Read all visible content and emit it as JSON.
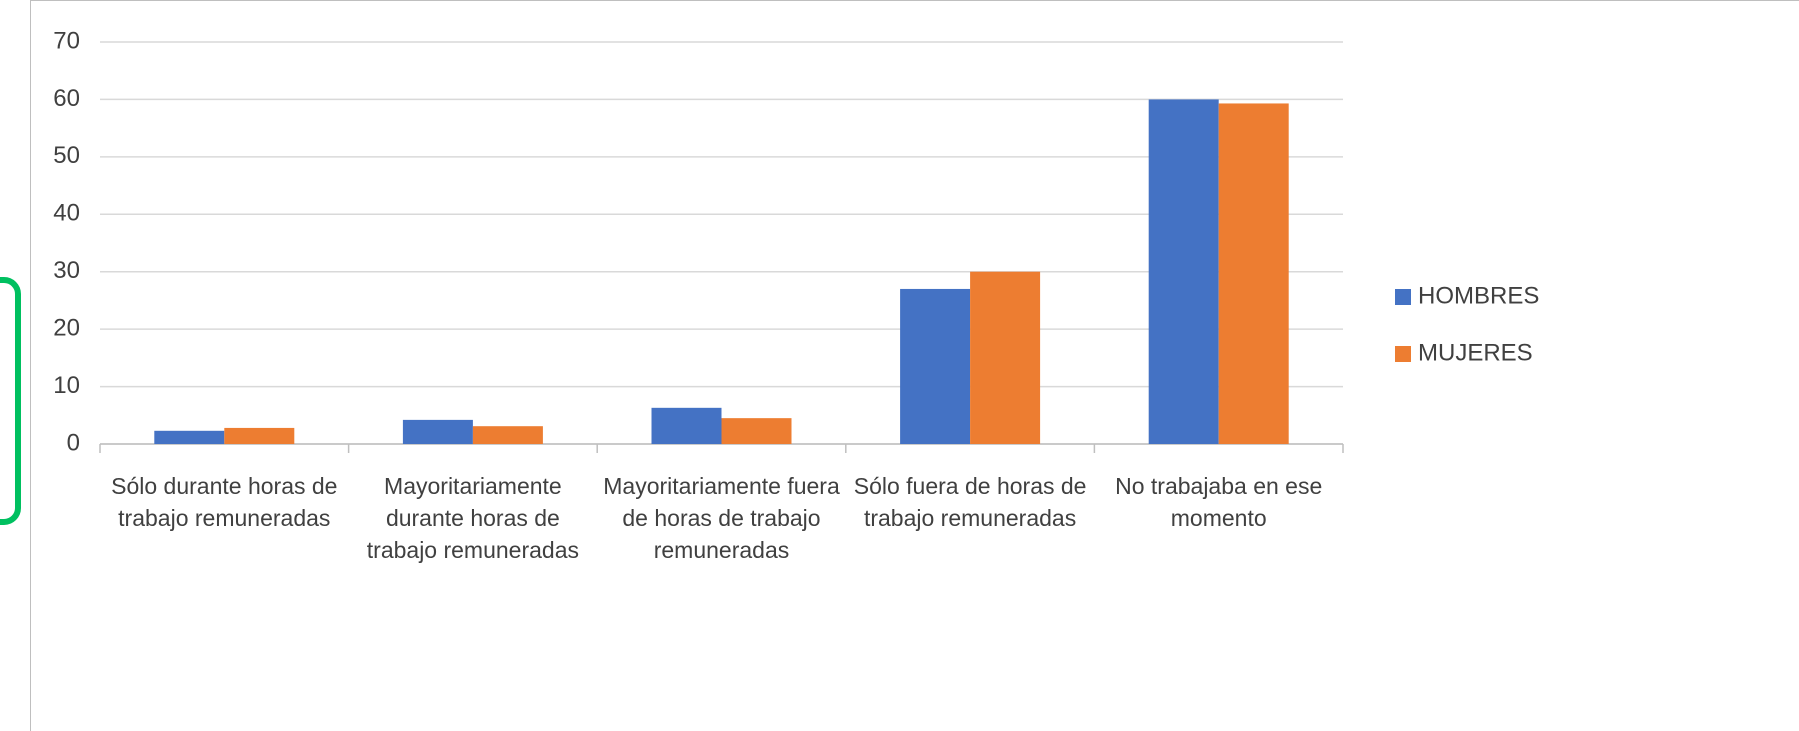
{
  "chart_data": {
    "type": "bar",
    "categories": [
      "Sólo durante horas de trabajo remuneradas",
      "Mayoritariamente durante horas de trabajo remuneradas",
      "Mayoritariamente fuera de horas de trabajo remuneradas",
      "Sólo fuera de horas de trabajo remuneradas",
      "No trabajaba en ese momento"
    ],
    "series": [
      {
        "name": "HOMBRES",
        "color": "#4472c4",
        "values": [
          2.3,
          4.2,
          6.3,
          27,
          60
        ]
      },
      {
        "name": "MUJERES",
        "color": "#ed7d31",
        "values": [
          2.8,
          3.1,
          4.5,
          30,
          59.3
        ]
      }
    ],
    "ylim": [
      0,
      70
    ],
    "yticks": [
      0,
      10,
      20,
      30,
      40,
      50,
      60,
      70
    ],
    "grid": true,
    "legend": "right"
  }
}
